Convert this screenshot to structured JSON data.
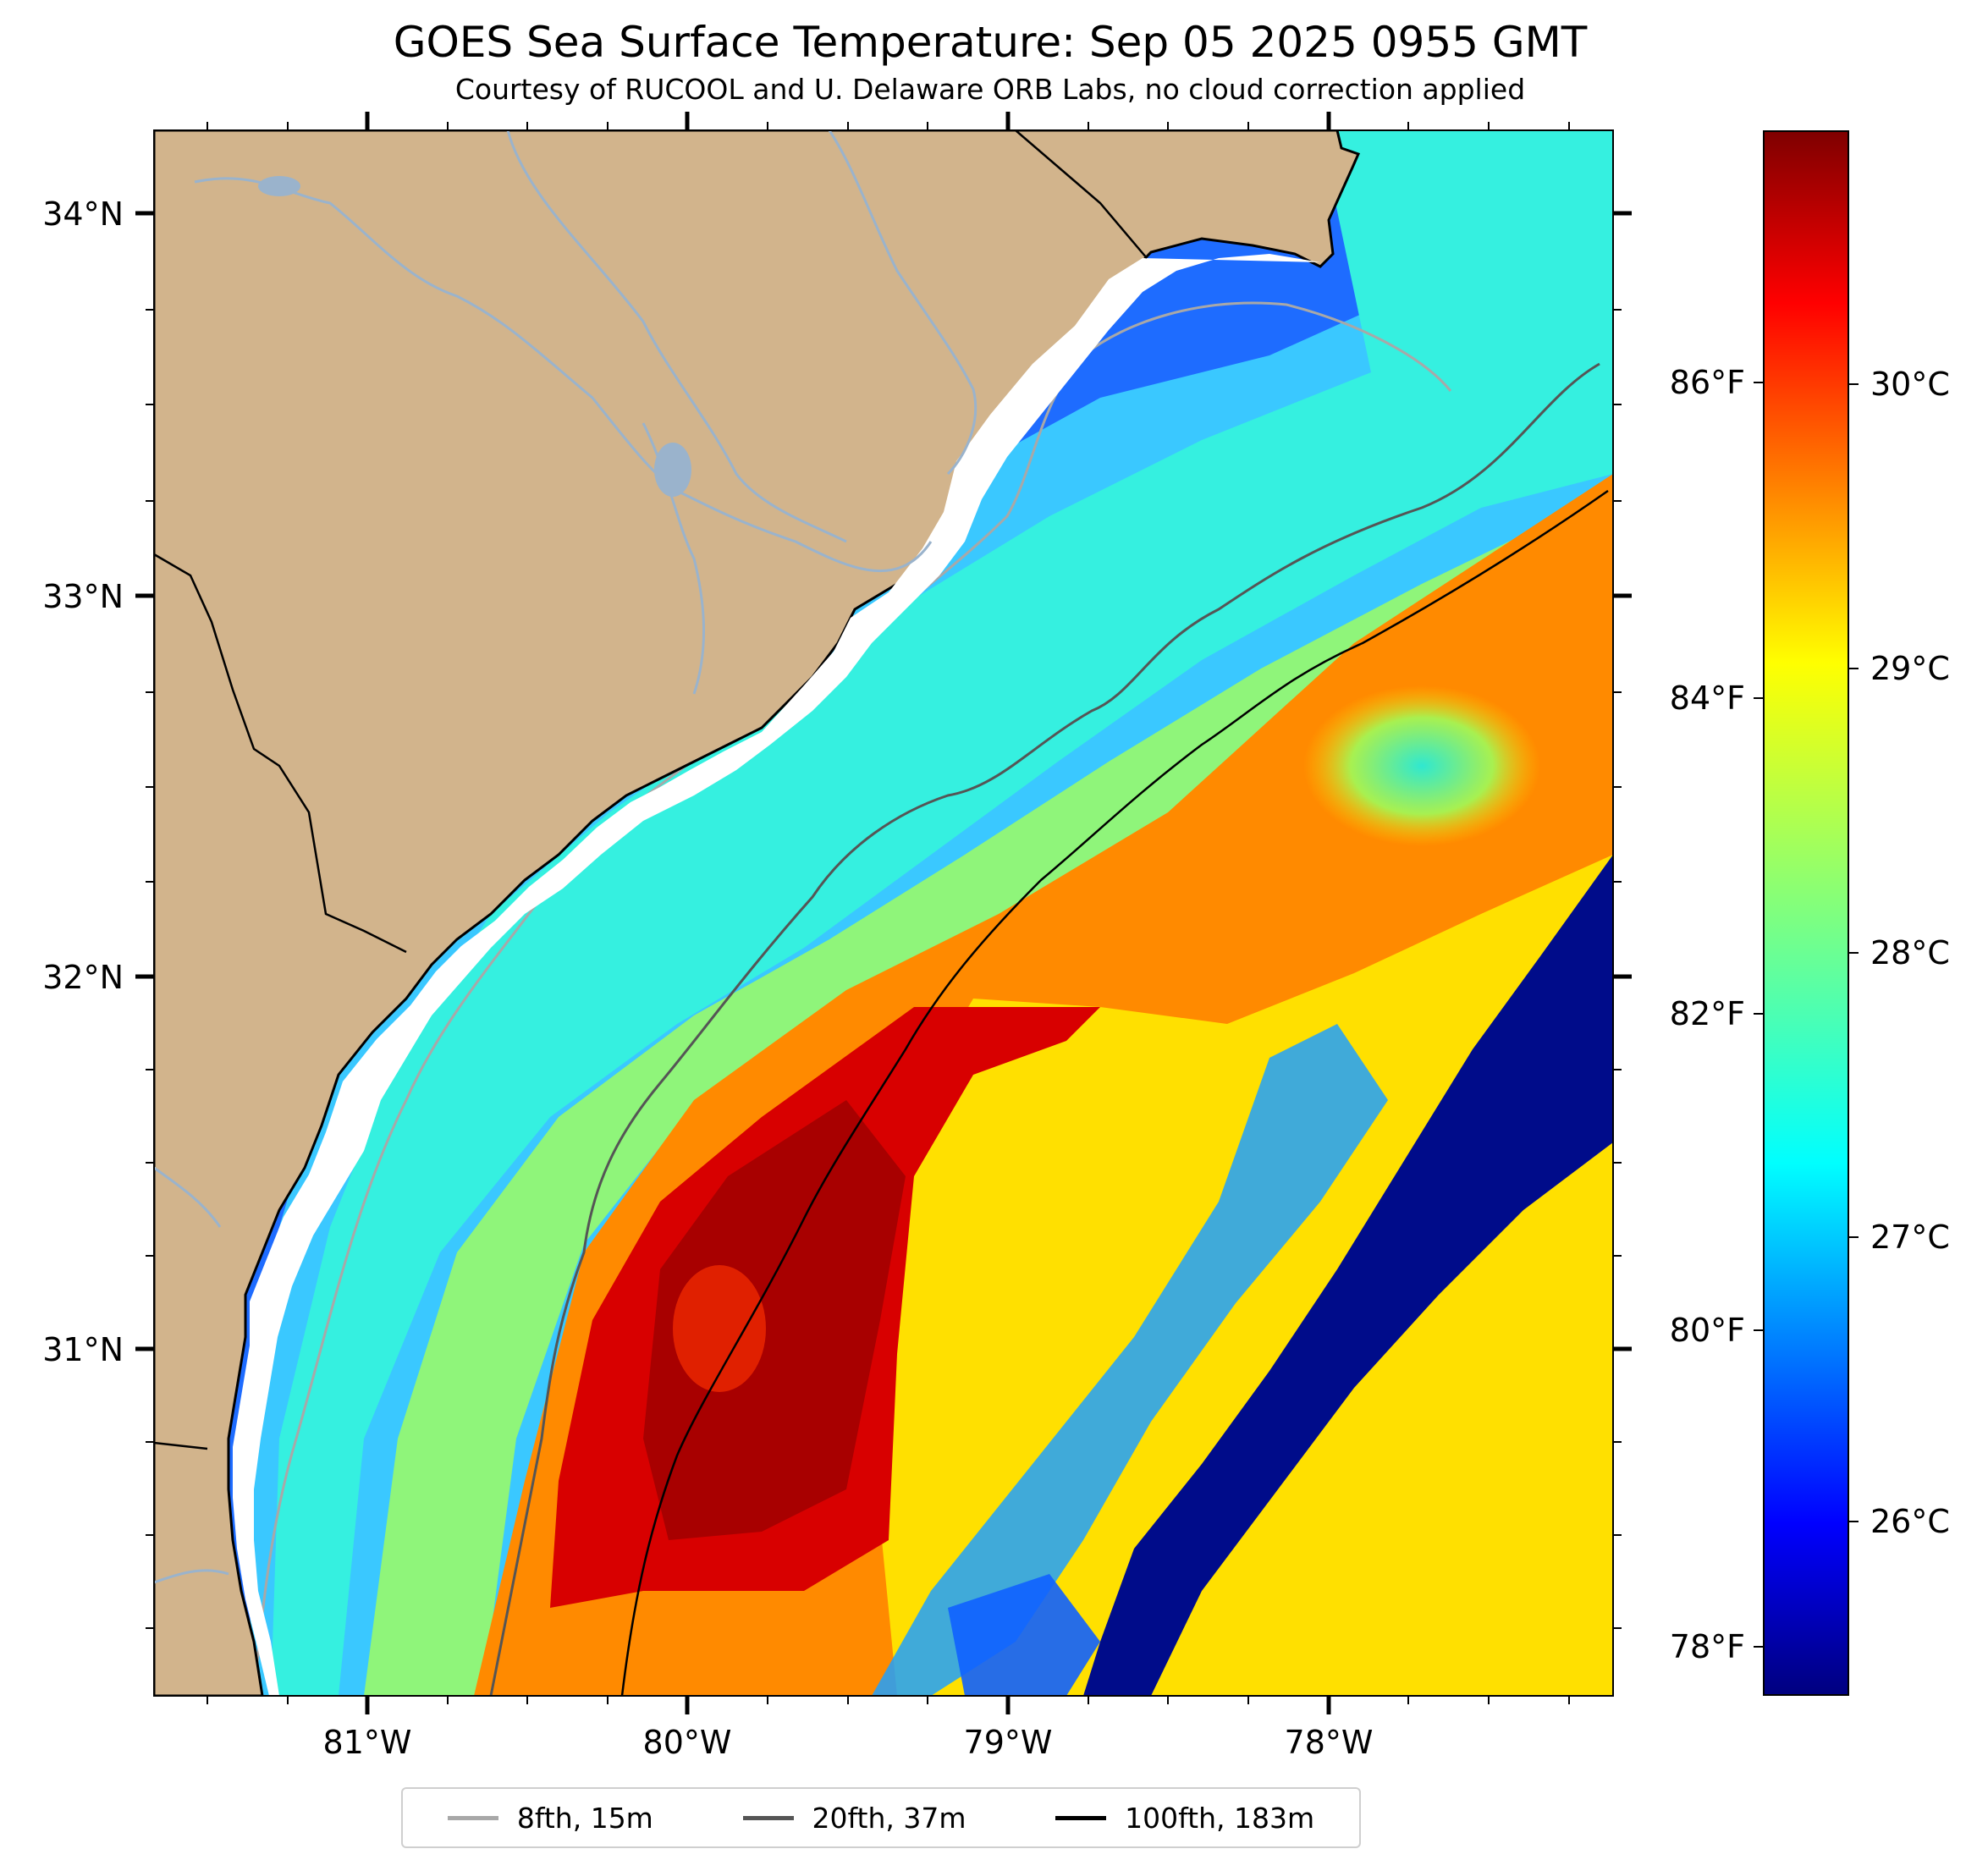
{
  "title": "GOES Sea Surface Temperature: Sep 05 2025 0955 GMT",
  "subtitle": "Courtesy of RUCOOL and U. Delaware ORB Labs, no cloud correction applied",
  "map": {
    "lat_labels": [
      "34°N",
      "33°N",
      "32°N",
      "31°N"
    ],
    "lon_labels": [
      "81°W",
      "80°W",
      "79°W",
      "78°W"
    ],
    "land_color": "#d2b48c",
    "coast_color": "#000000",
    "river_color": "#9ab3cc"
  },
  "colorbar": {
    "fahrenheit_labels": [
      "86°F",
      "84°F",
      "82°F",
      "80°F",
      "78°F"
    ],
    "celsius_labels": [
      "30°C",
      "29°C",
      "28°C",
      "27°C",
      "26°C"
    ],
    "colormap": "jet",
    "min_c": 25.4,
    "max_c": 31.0
  },
  "legend": {
    "items": [
      {
        "label": "8fth, 15m",
        "color": "#a8a8a8"
      },
      {
        "label": "20fth, 37m",
        "color": "#555555"
      },
      {
        "label": "100fth, 183m",
        "color": "#000000"
      }
    ]
  }
}
